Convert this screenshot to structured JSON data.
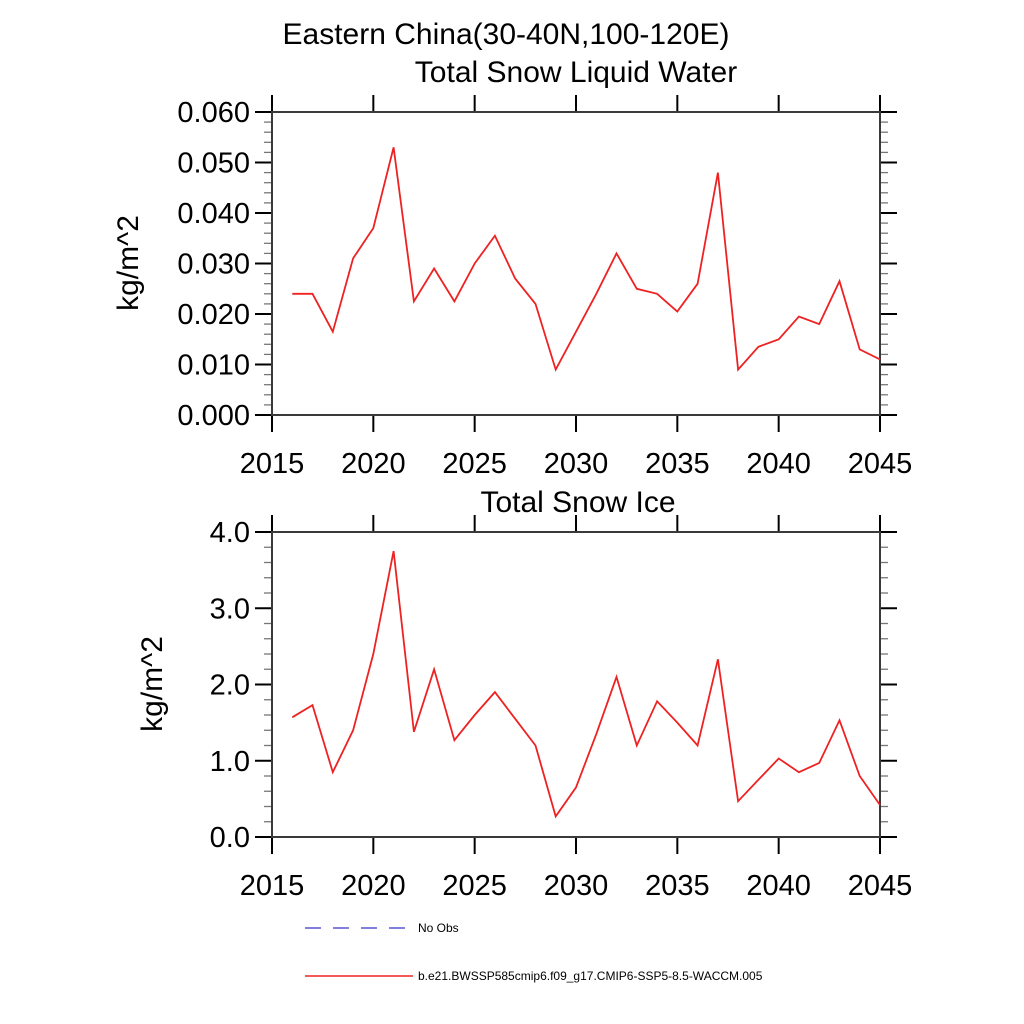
{
  "page_title": "Eastern China(30-40N,100-120E)",
  "legend": {
    "items": [
      {
        "label": "No Obs",
        "style": "dashed",
        "color": "#6f6fd8"
      },
      {
        "label": "b.e21.BWSSP585cmip6.f09_g17.CMIP6-SSP5-8.5-WACCM.005",
        "style": "solid",
        "color": "#ee2222"
      }
    ]
  },
  "axis_style": {
    "frame_color": "#3a3a3a",
    "major_tick_color": "#000000",
    "minor_tick_color": "#777777"
  },
  "chart_data": [
    {
      "type": "line",
      "title": "Total Snow Liquid Water",
      "ylabel": "kg/m^2",
      "xlabel": "",
      "x_range": [
        2015,
        2045
      ],
      "y_range": [
        0.0,
        0.06
      ],
      "x_ticks": [
        2015,
        2020,
        2025,
        2030,
        2035,
        2040,
        2045
      ],
      "y_ticks": [
        "0.000",
        "0.010",
        "0.020",
        "0.030",
        "0.040",
        "0.050",
        "0.060"
      ],
      "y_minor_step": 0.002,
      "grid": false,
      "legend_position": "none",
      "series": [
        {
          "name": "b.e21.BWSSP585cmip6.f09_g17.CMIP6-SSP5-8.5-WACCM.005",
          "color": "#ee2222",
          "x": [
            2016,
            2017,
            2018,
            2019,
            2020,
            2021,
            2022,
            2023,
            2024,
            2025,
            2026,
            2027,
            2028,
            2029,
            2030,
            2031,
            2032,
            2033,
            2034,
            2035,
            2036,
            2037,
            2038,
            2039,
            2040,
            2041,
            2042,
            2043,
            2044,
            2045
          ],
          "y": [
            0.024,
            0.024,
            0.0165,
            0.031,
            0.037,
            0.053,
            0.0225,
            0.029,
            0.0225,
            0.03,
            0.0355,
            0.027,
            0.022,
            0.009,
            0.0165,
            0.024,
            0.032,
            0.025,
            0.024,
            0.0205,
            0.026,
            0.048,
            0.009,
            0.0135,
            0.015,
            0.0195,
            0.018,
            0.0265,
            0.013,
            0.011
          ]
        }
      ]
    },
    {
      "type": "line",
      "title": "Total Snow Ice",
      "ylabel": "kg/m^2",
      "xlabel": "",
      "x_range": [
        2015,
        2045
      ],
      "y_range": [
        0.0,
        4.0
      ],
      "x_ticks": [
        2015,
        2020,
        2025,
        2030,
        2035,
        2040,
        2045
      ],
      "y_ticks": [
        "0.0",
        "1.0",
        "2.0",
        "3.0",
        "4.0"
      ],
      "y_minor_step": 0.2,
      "grid": false,
      "legend_position": "none",
      "series": [
        {
          "name": "b.e21.BWSSP585cmip6.f09_g17.CMIP6-SSP5-8.5-WACCM.005",
          "color": "#ee2222",
          "x": [
            2016,
            2017,
            2018,
            2019,
            2020,
            2021,
            2022,
            2023,
            2024,
            2025,
            2026,
            2027,
            2028,
            2029,
            2030,
            2031,
            2032,
            2033,
            2034,
            2035,
            2036,
            2037,
            2038,
            2039,
            2040,
            2041,
            2042,
            2043,
            2044,
            2045
          ],
          "y": [
            1.57,
            1.73,
            0.85,
            1.4,
            2.4,
            3.75,
            1.38,
            2.2,
            1.27,
            1.6,
            1.9,
            1.55,
            1.2,
            0.27,
            0.65,
            1.35,
            2.1,
            1.2,
            1.78,
            1.5,
            1.2,
            2.33,
            0.47,
            0.75,
            1.03,
            0.85,
            0.97,
            1.53,
            0.8,
            0.42
          ]
        }
      ]
    }
  ]
}
